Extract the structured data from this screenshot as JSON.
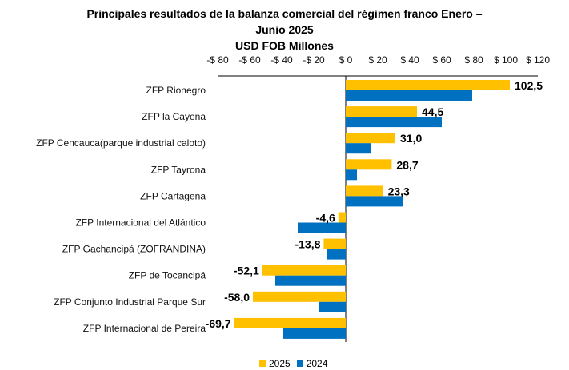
{
  "chart_data": {
    "type": "bar",
    "orientation": "horizontal",
    "title_line1": "Principales resultados de la balanza comercial del régimen franco  Enero –",
    "title_line2": "Junio 2025",
    "subtitle": "USD FOB Millones",
    "xlim": [
      -80,
      120
    ],
    "xticks": [
      -80,
      -60,
      -40,
      -20,
      0,
      20,
      40,
      60,
      80,
      100,
      120
    ],
    "xtick_labels": [
      "-$ 80",
      "-$ 60",
      "-$ 40",
      "-$ 20",
      "$ 0",
      "$ 20",
      "$ 40",
      "$ 60",
      "$ 80",
      "$ 100",
      "$ 120"
    ],
    "categories": [
      "ZFP Rionegro",
      "ZFP la Cayena",
      "ZFP Cencauca(parque industrial caloto)",
      "ZFP Tayrona",
      "ZFP Cartagena",
      "ZFP Internacional del Atlántico",
      "ZFP Gachancipá (ZOFRANDINA)",
      "ZFP de Tocancipá",
      "ZFP Conjunto Industrial Parque Sur",
      "ZFP Internacional de Pereira"
    ],
    "series": [
      {
        "name": "2025",
        "color": "#FFC000",
        "values": [
          102.5,
          44.5,
          31.0,
          28.7,
          23.3,
          -4.6,
          -13.8,
          -52.1,
          -58.0,
          -69.7
        ],
        "labels": [
          "102,5",
          "44,5",
          "31,0",
          "28,7",
          "23,3",
          "-4,6",
          "-13,8",
          "-52,1",
          "-58,0",
          "-69,7"
        ]
      },
      {
        "name": "2024",
        "color": "#0070C0",
        "values": [
          79,
          60,
          16,
          7,
          36,
          -30,
          -12,
          -44,
          -17,
          -39
        ]
      }
    ],
    "legend_position": "bottom",
    "grid": false
  }
}
